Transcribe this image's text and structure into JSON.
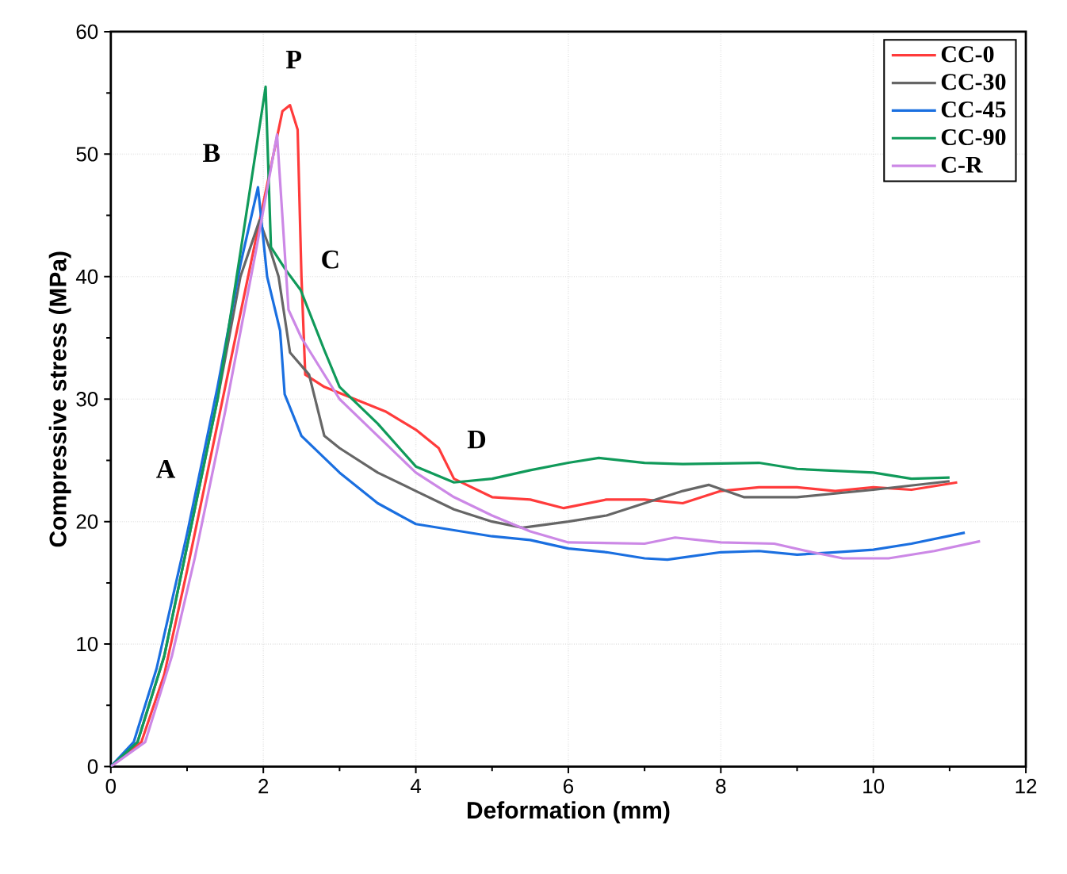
{
  "chart_data": {
    "type": "line",
    "xlabel": "Deformation (mm)",
    "ylabel": "Compressive stress (MPa)",
    "xlim": [
      0,
      12
    ],
    "ylim": [
      0,
      60
    ],
    "xticks": [
      0,
      2,
      4,
      6,
      8,
      10,
      12
    ],
    "yticks": [
      0,
      10,
      20,
      30,
      40,
      50,
      60
    ],
    "grid": true,
    "legend": "top right",
    "marker": "none",
    "line_style": "solid",
    "annotations": [
      "A",
      "B",
      "P",
      "C",
      "D"
    ],
    "series": [
      {
        "name": "CC-0",
        "color": "#ff3b3b",
        "x": [
          0,
          0.4,
          0.7,
          1.0,
          1.4,
          1.8,
          2.1,
          2.25,
          2.35,
          2.45,
          2.5,
          2.55,
          2.8,
          3.2,
          3.6,
          4.0,
          4.3,
          4.5,
          5,
          5.5,
          5.94,
          6.5,
          7,
          7.5,
          8,
          8.5,
          9,
          9.5,
          10,
          10.5,
          11.1
        ],
        "values": [
          0,
          2,
          7.5,
          16,
          28,
          40,
          49,
          53.5,
          54,
          52,
          40,
          32,
          31,
          30,
          29,
          27.5,
          26,
          23.5,
          22,
          21.8,
          21.1,
          21.8,
          21.8,
          21.5,
          22.5,
          22.8,
          22.8,
          22.5,
          22.8,
          22.6,
          23.2
        ]
      },
      {
        "name": "CC-30",
        "color": "#666666",
        "x": [
          0,
          0.35,
          0.7,
          1.0,
          1.4,
          1.7,
          1.95,
          2.1,
          2.2,
          2.35,
          2.6,
          2.8,
          3.0,
          3.5,
          4,
          4.5,
          5,
          5.4,
          6,
          6.5,
          7,
          7.5,
          7.84,
          8.3,
          9,
          10,
          11
        ],
        "values": [
          0,
          2,
          9,
          18,
          30,
          40,
          44.6,
          42,
          40,
          33.8,
          32,
          27,
          26,
          24,
          22.5,
          21,
          20,
          19.5,
          20,
          20.5,
          21.5,
          22.5,
          23,
          22,
          22,
          22.6,
          23.3
        ]
      },
      {
        "name": "CC-45",
        "color": "#1a6fe0",
        "x": [
          0,
          0.3,
          0.6,
          1.0,
          1.4,
          1.7,
          1.93,
          2.05,
          2.22,
          2.28,
          2.5,
          3,
          3.5,
          4,
          4.5,
          5,
          5.5,
          6,
          6.5,
          7,
          7.3,
          8,
          8.5,
          9,
          9.5,
          10,
          10.5,
          11.2
        ],
        "values": [
          0,
          2,
          8,
          19,
          31,
          41,
          47.3,
          40,
          35.6,
          30.4,
          27,
          24,
          21.5,
          19.8,
          19.3,
          18.8,
          18.5,
          17.8,
          17.5,
          17,
          16.9,
          17.5,
          17.6,
          17.3,
          17.5,
          17.7,
          18.2,
          19.1
        ]
      },
      {
        "name": "CC-90",
        "color": "#109a5a",
        "x": [
          0,
          0.35,
          0.7,
          1.0,
          1.4,
          1.7,
          2.03,
          2.1,
          2.3,
          2.49,
          2.8,
          3,
          3.5,
          4,
          4.5,
          5,
          5.5,
          6,
          6.4,
          7,
          7.5,
          8.5,
          9,
          10,
          10.5,
          11
        ],
        "values": [
          0,
          2,
          9,
          18,
          30,
          42,
          55.5,
          42.4,
          40.5,
          38.9,
          34,
          31,
          28,
          24.5,
          23.2,
          23.5,
          24.2,
          24.8,
          25.2,
          24.8,
          24.7,
          24.8,
          24.3,
          24,
          23.5,
          23.6
        ]
      },
      {
        "name": "C-R",
        "color": "#cc88e6",
        "x": [
          0,
          0.45,
          0.8,
          1.1,
          1.5,
          1.9,
          2.18,
          2.33,
          2.5,
          3,
          3.5,
          4,
          4.5,
          5,
          5.5,
          6,
          7,
          7.4,
          8,
          8.7,
          9.2,
          9.6,
          10.2,
          10.8,
          11.4
        ],
        "values": [
          0,
          2,
          9,
          17,
          29,
          42,
          51.6,
          37.3,
          35,
          30,
          27,
          24,
          22,
          20.5,
          19.2,
          18.3,
          18.2,
          18.7,
          18.3,
          18.2,
          17.5,
          17,
          17,
          17.6,
          18.4
        ]
      }
    ]
  }
}
